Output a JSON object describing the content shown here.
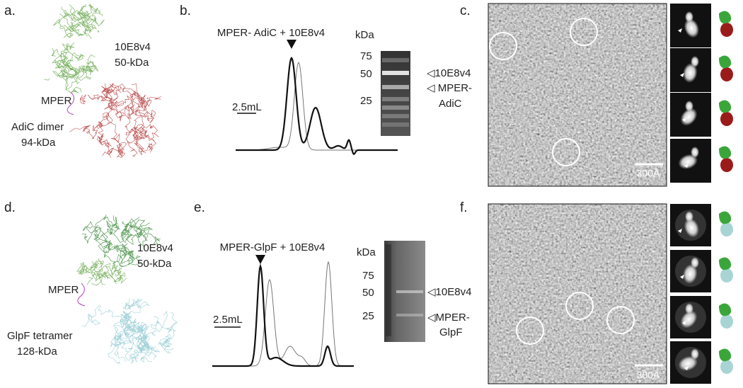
{
  "panels": {
    "a": {
      "label": "a.",
      "antibody": "10E8v4",
      "antibody_mass": "50-kDa",
      "linker": "MPER",
      "target": "AdiC dimer",
      "target_mass": "94-kDa"
    },
    "b": {
      "label": "b.",
      "title": "MPER- AdiC + 10E8v4",
      "scale_bar": "2.5mL",
      "gel": {
        "unit": "kDa",
        "markers": [
          "75",
          "50",
          "25"
        ],
        "bands": [
          "◁10E8v4",
          "◁ MPER-",
          "AdiC"
        ]
      }
    },
    "c": {
      "label": "c.",
      "scale_bar": "300Å"
    },
    "d": {
      "label": "d.",
      "antibody": "10E8v4",
      "antibody_mass": "50-kDa",
      "linker": "MPER",
      "target": "GlpF tetramer",
      "target_mass": "128-kDa"
    },
    "e": {
      "label": "e.",
      "title": "MPER-GlpF + 10E8v4",
      "scale_bar": "2.5mL",
      "gel": {
        "unit": "kDa",
        "markers": [
          "75",
          "50",
          "25"
        ],
        "bands": [
          "◁10E8v4",
          "◁MPER-",
          "GlpF"
        ]
      }
    },
    "f": {
      "label": "f.",
      "scale_bar": "300Å"
    }
  }
}
